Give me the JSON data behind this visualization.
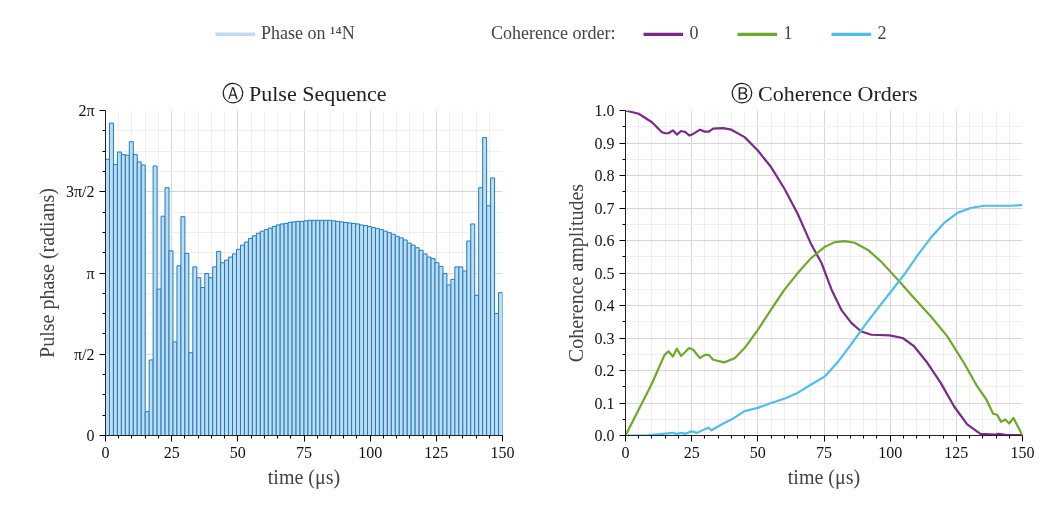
{
  "chart_data": [
    {
      "type": "histogram",
      "title": "Ⓐ Pulse Sequence",
      "xlabel": "time (μs)",
      "ylabel": "Pulse phase (radians)",
      "bins": [
        0,
        1.5,
        3,
        4.5,
        6,
        7.5,
        9,
        10.5,
        12,
        13.5,
        15,
        16.5,
        18,
        19.5,
        21,
        22.5,
        24,
        25.5,
        27,
        28.5,
        30,
        31.5,
        33,
        34.5,
        36,
        37.5,
        39,
        40.5,
        42,
        43.5,
        45,
        46.5,
        48,
        49.5,
        51,
        52.5,
        54,
        55.5,
        57,
        58.5,
        60,
        61.5,
        63,
        64.5,
        66,
        67.5,
        69,
        70.5,
        72,
        73.5,
        75,
        76.5,
        78,
        79.5,
        81,
        82.5,
        84,
        85.5,
        87,
        88.5,
        90,
        91.5,
        93,
        94.5,
        96,
        97.5,
        99,
        100.5,
        102,
        103.5,
        105,
        106.5,
        108,
        109.5,
        111,
        112.5,
        114,
        115.5,
        117,
        118.5,
        120,
        121.5,
        123,
        124.5,
        126,
        127.5,
        129,
        130.5,
        132,
        133.5,
        135,
        136.5,
        138,
        139.5,
        141,
        142.5,
        144,
        145.5,
        147,
        148.5,
        150
      ],
      "series": [
        {
          "name": "Phase on ¹⁴N",
          "color": "#c1dcee",
          "values": [
            5.34,
            6.04,
            5.24,
            5.48,
            5.43,
            5.42,
            5.68,
            5.43,
            5.29,
            5.23,
            0.46,
            1.46,
            5.21,
            2.83,
            4.24,
            4.79,
            3.57,
            1.81,
            3.28,
            4.23,
            3.52,
            1.6,
            3.26,
            3.05,
            2.86,
            3.13,
            3.05,
            3.26,
            3.56,
            3.34,
            3.39,
            3.45,
            3.51,
            3.6,
            3.68,
            3.74,
            3.81,
            3.86,
            3.91,
            3.95,
            3.98,
            4.01,
            4.04,
            4.07,
            4.09,
            4.1,
            4.12,
            4.13,
            4.14,
            4.14,
            4.15,
            4.16,
            4.16,
            4.16,
            4.16,
            4.16,
            4.16,
            4.15,
            4.14,
            4.13,
            4.12,
            4.11,
            4.1,
            4.09,
            4.07,
            4.06,
            4.04,
            4.02,
            4.0,
            3.98,
            3.95,
            3.92,
            3.89,
            3.85,
            3.82,
            3.78,
            3.72,
            3.68,
            3.63,
            3.58,
            3.51,
            3.45,
            3.42,
            3.34,
            3.27,
            3.13,
            2.91,
            3.02,
            3.26,
            3.26,
            3.18,
            3.76,
            4.09,
            2.71,
            4.79,
            5.76,
            4.44,
            4.98,
            2.36,
            2.76
          ]
        }
      ],
      "xlim": [
        0,
        150
      ],
      "ylim": [
        0,
        6.2832
      ],
      "xticks": [
        0,
        {
          "value": 5,
          "label": null
        },
        {
          "value": 10,
          "label": null
        },
        {
          "value": 15,
          "label": null
        },
        {
          "value": 20,
          "label": null
        },
        25,
        {
          "value": 30,
          "label": null
        },
        {
          "value": 35,
          "label": null
        },
        {
          "value": 40,
          "label": null
        },
        {
          "value": 45,
          "label": null
        },
        50,
        {
          "value": 55,
          "label": null
        },
        {
          "value": 60,
          "label": null
        },
        {
          "value": 65,
          "label": null
        },
        {
          "value": 70,
          "label": null
        },
        75,
        {
          "value": 80,
          "label": null
        },
        {
          "value": 85,
          "label": null
        },
        {
          "value": 90,
          "label": null
        },
        {
          "value": 95,
          "label": null
        },
        100,
        {
          "value": 105,
          "label": null
        },
        {
          "value": 110,
          "label": null
        },
        {
          "value": 115,
          "label": null
        },
        {
          "value": 120,
          "label": null
        },
        125,
        {
          "value": 130,
          "label": null
        },
        {
          "value": 135,
          "label": null
        },
        {
          "value": 140,
          "label": null
        },
        {
          "value": 145,
          "label": null
        },
        150
      ],
      "yticks": [
        0,
        {
          "value": 0.3927,
          "label": null
        },
        {
          "value": 0.7854,
          "label": null
        },
        {
          "value": 1.1781,
          "label": null
        },
        {
          "value": 1.5708,
          "label": "π/2"
        },
        {
          "value": 1.9635,
          "label": null
        },
        {
          "value": 2.3562,
          "label": null
        },
        {
          "value": 2.7489,
          "label": null
        },
        {
          "value": 3.1416,
          "label": "π"
        },
        {
          "value": 3.5343,
          "label": null
        },
        {
          "value": 3.927,
          "label": null
        },
        {
          "value": 4.3197,
          "label": null
        },
        {
          "value": 4.7124,
          "label": "3π/2"
        },
        {
          "value": 5.1051,
          "label": null
        },
        {
          "value": 5.4978,
          "label": null
        },
        {
          "value": 5.8905,
          "label": null
        },
        {
          "value": 6.2832,
          "label": "2π"
        }
      ],
      "grid": true,
      "legend": "top"
    },
    {
      "type": "line",
      "title": "Ⓑ Coherence Orders",
      "xlabel": "time (μs)",
      "ylabel": "Coherence amplitudes",
      "legend_title": "Coherence order:",
      "series": [
        {
          "name": "0",
          "color": "#7b2a8c",
          "x": [
            0,
            5,
            10,
            13.75,
            15,
            16.25,
            17.9,
            19.4,
            21,
            22.5,
            24.1,
            25.6,
            28.1,
            30,
            31.5,
            33.1,
            36.9,
            40,
            45,
            50,
            55,
            60,
            65,
            70,
            74.1,
            77.9,
            81.6,
            85.4,
            89.1,
            92.9,
            99.75,
            104.75,
            109.1,
            114.1,
            119.1,
            124.1,
            129.1,
            134.1,
            139.75,
            141,
            144,
            150
          ],
          "values": [
            1.0,
            0.99,
            0.964,
            0.933,
            0.93,
            0.93,
            0.939,
            0.926,
            0.937,
            0.934,
            0.923,
            0.928,
            0.941,
            0.935,
            0.935,
            0.944,
            0.946,
            0.941,
            0.918,
            0.877,
            0.826,
            0.76,
            0.683,
            0.591,
            0.53,
            0.448,
            0.386,
            0.346,
            0.32,
            0.31,
            0.308,
            0.3,
            0.274,
            0.223,
            0.162,
            0.09,
            0.034,
            0.005,
            0.003,
            0.005,
            0.001,
            0.001
          ]
        },
        {
          "name": "1",
          "color": "#6fa82b",
          "x": [
            0,
            5,
            10,
            14.75,
            16.25,
            17.9,
            19.4,
            21,
            22.5,
            24,
            25.6,
            28.1,
            30,
            31.5,
            33.1,
            37.25,
            41.25,
            45,
            50,
            55,
            60,
            65,
            70,
            75.4,
            79.1,
            82.9,
            86.6,
            91.6,
            96.6,
            102.9,
            109.1,
            115.4,
            121.6,
            127.9,
            132.9,
            136.4,
            138.9,
            140.4,
            141.9,
            143.5,
            145,
            146.6,
            150
          ],
          "values": [
            0,
            0.08,
            0.16,
            0.248,
            0.259,
            0.243,
            0.267,
            0.245,
            0.256,
            0.269,
            0.264,
            0.238,
            0.248,
            0.248,
            0.233,
            0.225,
            0.238,
            0.269,
            0.325,
            0.387,
            0.448,
            0.499,
            0.545,
            0.581,
            0.595,
            0.598,
            0.593,
            0.571,
            0.535,
            0.479,
            0.422,
            0.366,
            0.305,
            0.223,
            0.151,
            0.11,
            0.067,
            0.064,
            0.042,
            0.049,
            0.037,
            0.054,
            0
          ]
        },
        {
          "name": "2",
          "color": "#4dbfee",
          "x": [
            0,
            7.5,
            15,
            17.9,
            19.4,
            21.25,
            22.5,
            25,
            26.9,
            28.75,
            31.25,
            32.5,
            36.25,
            40,
            45,
            50,
            55,
            60,
            65,
            70,
            75.4,
            80.4,
            85.4,
            90.4,
            95.4,
            100.4,
            105.4,
            110.4,
            115.4,
            120.4,
            125.4,
            130.4,
            135.4,
            140.4,
            145.4,
            150
          ],
          "values": [
            0,
            0,
            0.006,
            0.008,
            0.005,
            0.008,
            0.005,
            0.013,
            0.008,
            0.015,
            0.024,
            0.016,
            0.034,
            0.049,
            0.075,
            0.085,
            0.1,
            0.113,
            0.131,
            0.156,
            0.182,
            0.228,
            0.282,
            0.339,
            0.392,
            0.444,
            0.496,
            0.555,
            0.609,
            0.654,
            0.685,
            0.7,
            0.707,
            0.707,
            0.707,
            0.709
          ]
        }
      ],
      "xlim": [
        0,
        150
      ],
      "ylim": [
        0,
        1
      ],
      "xticks": [
        0,
        {
          "value": 5,
          "label": null
        },
        {
          "value": 10,
          "label": null
        },
        {
          "value": 15,
          "label": null
        },
        {
          "value": 20,
          "label": null
        },
        25,
        {
          "value": 30,
          "label": null
        },
        {
          "value": 35,
          "label": null
        },
        {
          "value": 40,
          "label": null
        },
        {
          "value": 45,
          "label": null
        },
        50,
        {
          "value": 55,
          "label": null
        },
        {
          "value": 60,
          "label": null
        },
        {
          "value": 65,
          "label": null
        },
        {
          "value": 70,
          "label": null
        },
        75,
        {
          "value": 80,
          "label": null
        },
        {
          "value": 85,
          "label": null
        },
        {
          "value": 90,
          "label": null
        },
        {
          "value": 95,
          "label": null
        },
        100,
        {
          "value": 105,
          "label": null
        },
        {
          "value": 110,
          "label": null
        },
        {
          "value": 115,
          "label": null
        },
        {
          "value": 120,
          "label": null
        },
        125,
        {
          "value": 130,
          "label": null
        },
        {
          "value": 135,
          "label": null
        },
        {
          "value": 140,
          "label": null
        },
        {
          "value": 145,
          "label": null
        },
        150
      ],
      "yticks": [
        {
          "value": 0,
          "label": "0.0"
        },
        {
          "value": 0.05,
          "label": null
        },
        0.1,
        {
          "value": 0.15,
          "label": null
        },
        0.2,
        {
          "value": 0.25,
          "label": null
        },
        0.3,
        {
          "value": 0.35,
          "label": null
        },
        0.4,
        {
          "value": 0.45,
          "label": null
        },
        0.5,
        {
          "value": 0.55,
          "label": null
        },
        0.6,
        {
          "value": 0.65,
          "label": null
        },
        0.7,
        {
          "value": 0.75,
          "label": null
        },
        0.8,
        {
          "value": 0.85,
          "label": null
        },
        0.9,
        {
          "value": 0.95,
          "label": null
        },
        {
          "value": 1,
          "label": "1.0"
        }
      ],
      "grid": true,
      "legend": "top"
    }
  ]
}
